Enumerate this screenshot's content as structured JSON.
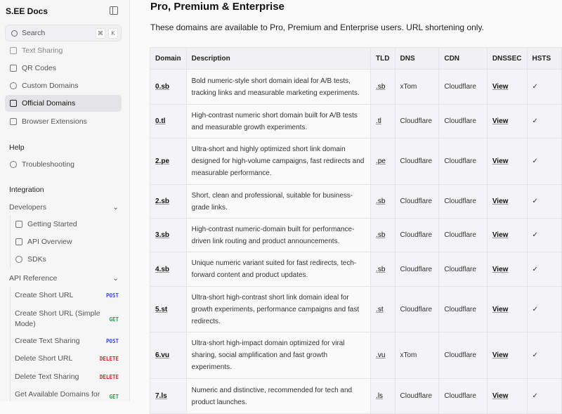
{
  "sidebar": {
    "title": "S.EE Docs",
    "search": {
      "placeholder": "Search",
      "key1": "⌘",
      "key2": "K"
    },
    "items": [
      {
        "label": "Text Sharing"
      },
      {
        "label": "QR Codes"
      },
      {
        "label": "Custom Domains"
      },
      {
        "label": "Official Domains",
        "active": true
      },
      {
        "label": "Browser Extensions"
      }
    ],
    "help": {
      "title": "Help",
      "items": [
        {
          "label": "Troubleshooting"
        }
      ]
    },
    "integration": {
      "title": "Integration",
      "developers": "Developers",
      "dev_items": [
        {
          "label": "Getting Started"
        },
        {
          "label": "API Overview"
        },
        {
          "label": "SDKs"
        }
      ],
      "api_reference": "API Reference",
      "api_items": [
        {
          "label": "Create Short URL",
          "method": "POST"
        },
        {
          "label": "Create Short URL (Simple Mode)",
          "method": "GET"
        },
        {
          "label": "Create Text Sharing",
          "method": "POST"
        },
        {
          "label": "Delete Short URL",
          "method": "DELETE"
        },
        {
          "label": "Delete Text Sharing",
          "method": "DELETE"
        },
        {
          "label": "Get Available Domains for",
          "method": "GET"
        }
      ]
    }
  },
  "method_colors": {
    "POST": "#3b4fd8",
    "GET": "#2e9a4a",
    "DELETE": "#d02a2a"
  },
  "main": {
    "title": "Pro, Premium & Enterprise",
    "intro": "These domains are available to Pro, Premium and Enterprise users. URL shortening only.",
    "columns": [
      "Domain",
      "Description",
      "TLD",
      "DNS",
      "CDN",
      "DNSSEC",
      "HSTS"
    ],
    "rows": [
      {
        "domain": "0.sb",
        "desc": "Bold numeric-style short domain ideal for A/B tests, tracking links and measurable marketing experiments.",
        "tld": ".sb",
        "dns": "xTom",
        "cdn": "Cloudflare",
        "dnssec": "View",
        "hsts": "✓"
      },
      {
        "domain": "0.tl",
        "desc": "High-contrast numeric short domain built for A/B tests and measurable growth experiments.",
        "tld": ".tl",
        "dns": "Cloudflare",
        "cdn": "Cloudflare",
        "dnssec": "View",
        "hsts": "✓"
      },
      {
        "domain": "2.pe",
        "desc": "Ultra-short and highly optimized short link domain designed for high-volume campaigns, fast redirects and measurable performance.",
        "tld": ".pe",
        "dns": "Cloudflare",
        "cdn": "Cloudflare",
        "dnssec": "View",
        "hsts": "✓"
      },
      {
        "domain": "2.sb",
        "desc": "Short, clean and professional, suitable for business-grade links.",
        "tld": ".sb",
        "dns": "Cloudflare",
        "cdn": "Cloudflare",
        "dnssec": "View",
        "hsts": "✓"
      },
      {
        "domain": "3.sb",
        "desc": "High-contrast numeric-domain built for performance-driven link routing and product announcements.",
        "tld": ".sb",
        "dns": "Cloudflare",
        "cdn": "Cloudflare",
        "dnssec": "View",
        "hsts": "✓"
      },
      {
        "domain": "4.sb",
        "desc": "Unique numeric variant suited for fast redirects, tech-forward content and product updates.",
        "tld": ".sb",
        "dns": "Cloudflare",
        "cdn": "Cloudflare",
        "dnssec": "View",
        "hsts": "✓"
      },
      {
        "domain": "5.st",
        "desc": "Ultra-short high-contrast short link domain ideal for growth experiments, performance campaigns and fast redirects.",
        "tld": ".st",
        "dns": "Cloudflare",
        "cdn": "Cloudflare",
        "dnssec": "View",
        "hsts": "✓"
      },
      {
        "domain": "6.vu",
        "desc": "Ultra-short high-impact domain optimized for viral sharing, social amplification and fast growth experiments.",
        "tld": ".vu",
        "dns": "xTom",
        "cdn": "Cloudflare",
        "dnssec": "View",
        "hsts": "✓"
      },
      {
        "domain": "7.ls",
        "desc": "Numeric and distinctive, recommended for tech and product launches.",
        "tld": ".ls",
        "dns": "Cloudflare",
        "cdn": "Cloudflare",
        "dnssec": "View",
        "hsts": "✓"
      }
    ]
  }
}
